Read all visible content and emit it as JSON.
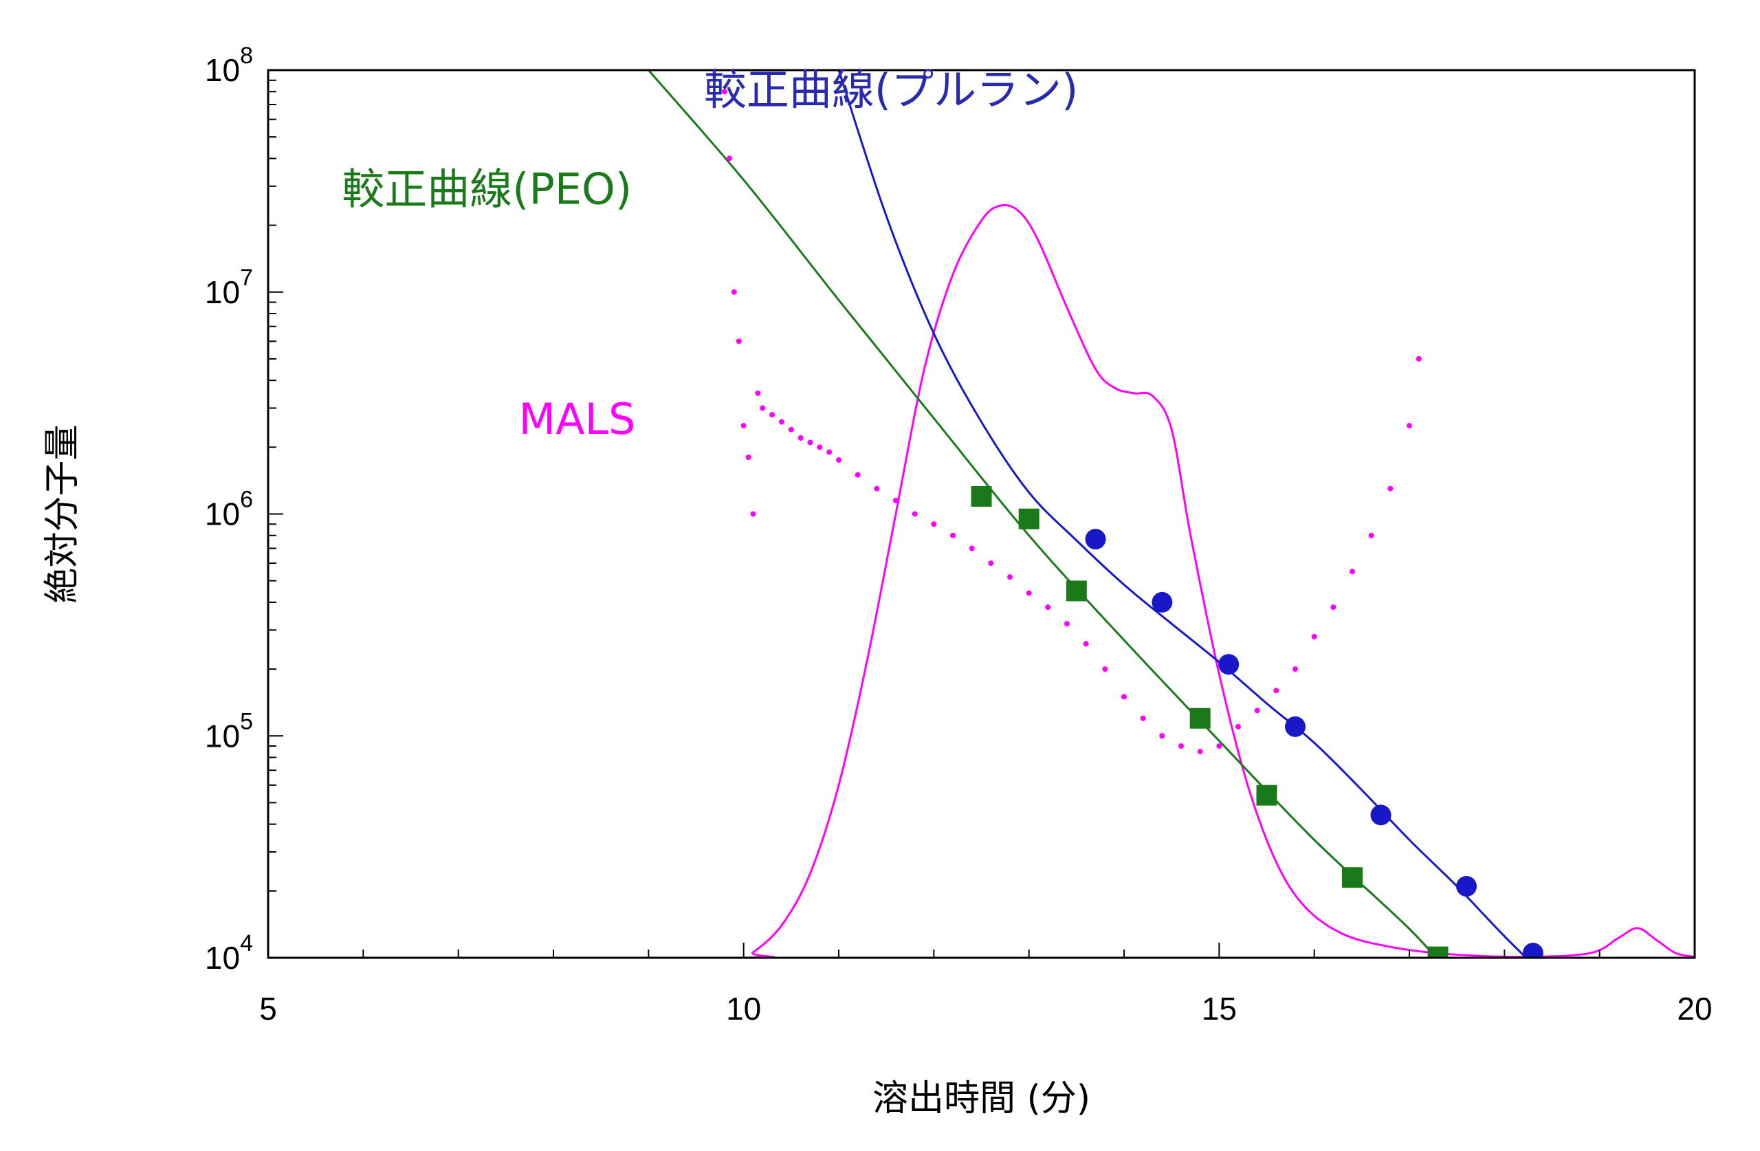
{
  "chart_data": {
    "type": "scatter",
    "title": "",
    "xlabel": "溶出時間 (分)",
    "ylabel": "絶対分子量",
    "xlim": [
      5,
      20
    ],
    "ylim": [
      10000,
      100000000
    ],
    "yscale": "log",
    "grid": false,
    "x_ticks": [
      "5",
      "10",
      "15",
      "20"
    ],
    "y_ticks": [
      {
        "base": "10",
        "exp": "4",
        "value": 10000
      },
      {
        "base": "10",
        "exp": "5",
        "value": 100000
      },
      {
        "base": "10",
        "exp": "6",
        "value": 1000000
      },
      {
        "base": "10",
        "exp": "7",
        "value": 10000000
      },
      {
        "base": "10",
        "exp": "8",
        "value": 100000000
      }
    ],
    "series": [
      {
        "name": "較正曲線(PEO)",
        "color": "#1a7a1a",
        "marker": "square",
        "line": {
          "x": [
            9.0,
            10.0,
            11.0,
            12.0,
            13.0,
            14.0,
            15.0,
            16.0,
            17.0,
            17.4
          ],
          "y": [
            100000000,
            32000000,
            9200000,
            2700000,
            800000,
            270000,
            95000,
            34000,
            13500,
            8700
          ]
        },
        "points": {
          "x": [
            12.5,
            13.0,
            13.5,
            14.8,
            15.5,
            16.4,
            17.3
          ],
          "y": [
            1200000,
            950000,
            450000,
            120000,
            54000,
            23000,
            10100
          ]
        }
      },
      {
        "name": "較正曲線(プルラン)",
        "color": "#1818c8",
        "marker": "circle",
        "line": {
          "x": [
            11.0,
            11.5,
            12.0,
            12.5,
            13.0,
            13.5,
            14.0,
            14.5,
            15.0,
            15.5,
            16.0,
            16.5,
            17.0,
            17.5,
            18.0,
            18.5
          ],
          "y": [
            100000000,
            22000000,
            6500000,
            2600000,
            1250000,
            760000,
            480000,
            320000,
            215000,
            140000,
            93000,
            57000,
            34000,
            21000,
            12500,
            7700
          ]
        },
        "points": {
          "x": [
            13.7,
            14.4,
            15.1,
            15.8,
            16.7,
            17.6,
            18.3
          ],
          "y": [
            770000,
            400000,
            210000,
            110000,
            44000,
            21000,
            10500
          ]
        }
      },
      {
        "name": "MALS",
        "color": "#ff00ff",
        "marker": "dot",
        "points": {
          "x": [
            9.8,
            9.85,
            9.9,
            9.95,
            10.0,
            10.05,
            10.1,
            10.15,
            10.2,
            10.3,
            10.4,
            10.5,
            10.6,
            10.7,
            10.8,
            10.9,
            11.0,
            11.2,
            11.4,
            11.6,
            11.8,
            12.0,
            12.2,
            12.4,
            12.6,
            12.8,
            13.0,
            13.2,
            13.4,
            13.6,
            13.8,
            14.0,
            14.2,
            14.4,
            14.6,
            14.8,
            15.0,
            15.2,
            15.4,
            15.6,
            15.8,
            16.0,
            16.2,
            16.4,
            16.6,
            16.8,
            17.0,
            17.1
          ],
          "y": [
            80000000,
            40000000,
            10000000,
            6000000,
            2500000,
            1800000,
            1000000,
            3500000,
            3000000,
            2800000,
            2600000,
            2400000,
            2200000,
            2100000,
            2000000,
            1900000,
            1750000,
            1500000,
            1300000,
            1150000,
            1000000,
            900000,
            800000,
            700000,
            600000,
            520000,
            440000,
            380000,
            320000,
            260000,
            200000,
            150000,
            120000,
            100000,
            90000,
            85000,
            90000,
            110000,
            130000,
            160000,
            200000,
            280000,
            380000,
            550000,
            800000,
            1300000,
            2500000,
            5000000
          ]
        },
        "trace": {
          "x": [
            5.0,
            9.9,
            10.1,
            10.4,
            10.7,
            11.0,
            11.3,
            11.6,
            11.9,
            12.2,
            12.5,
            12.7,
            12.9,
            13.1,
            13.4,
            13.7,
            13.9,
            14.1,
            14.3,
            14.5,
            14.7,
            15.0,
            15.3,
            15.6,
            15.9,
            16.3,
            16.8,
            17.4,
            18.2,
            18.9,
            19.2,
            19.4,
            19.6,
            19.8,
            20.0
          ],
          "y": [
            10000,
            10000,
            10600,
            14000,
            24000,
            60000,
            220000,
            1000000,
            4500000,
            12000000,
            21000000,
            24500000,
            23000000,
            17000000,
            8500000,
            4500000,
            3700000,
            3500000,
            3400000,
            2400000,
            800000,
            190000,
            60000,
            27000,
            17000,
            12800,
            11200,
            10400,
            10100,
            10500,
            12300,
            13600,
            12000,
            10500,
            10100
          ]
        }
      }
    ],
    "annotations": [
      {
        "text": "較正曲線(PEO)",
        "color": "#1a7a1a",
        "at_x": 7.3,
        "at_y": 25000000
      },
      {
        "text": "較正曲線(プルラン)",
        "color": "#2a2ab0",
        "at_x": 11.55,
        "at_y": 70000000
      },
      {
        "text": "MALS",
        "color": "#ff00ff",
        "at_x": 8.25,
        "at_y": 2300000
      }
    ]
  }
}
